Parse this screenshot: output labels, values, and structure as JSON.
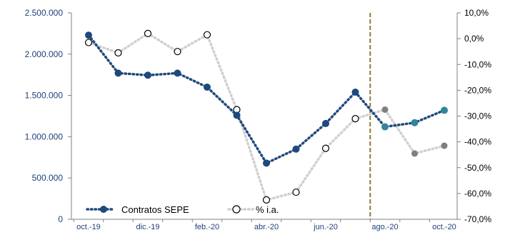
{
  "chart_data": {
    "type": "line",
    "x": [
      "oct.-19",
      "nov.-19",
      "dic.-19",
      "ene.-20",
      "feb.-20",
      "mar.-20",
      "abr.-20",
      "may.-20",
      "jun.-20",
      "jul.-20",
      "ago.-20",
      "sep.-20",
      "oct.-20"
    ],
    "x_tick_labels": [
      "oct.-19",
      "dic.-19",
      "feb.-20",
      "abr.-20",
      "jun.-20",
      "ago.-20",
      "oct.-20"
    ],
    "left_axis": {
      "ylim": [
        0,
        2500000
      ],
      "ticks": [
        "0",
        "500.000",
        "1.000.000",
        "1.500.000",
        "2.000.000",
        "2.500.000"
      ]
    },
    "right_axis": {
      "ylim": [
        -70,
        10
      ],
      "ticks": [
        "-70,0%",
        "-60,0%",
        "-50,0%",
        "-40,0%",
        "-30,0%",
        "-20,0%",
        "-10,0%",
        "0,0%",
        "10,0%"
      ]
    },
    "series": [
      {
        "name": "Contratos SEPE",
        "axis": "left",
        "values": [
          2230000,
          1770000,
          1745000,
          1770000,
          1600000,
          1260000,
          680000,
          850000,
          1160000,
          1540000,
          1120000,
          1170000,
          1320000
        ],
        "color": "#1f497d",
        "highlight_color": "#31859c",
        "highlight_from_index": 10
      },
      {
        "name": "% i.a.",
        "axis": "right",
        "values": [
          -1.5,
          -5.5,
          2.0,
          -5.0,
          1.5,
          -27.5,
          -62.5,
          -59.5,
          -42.5,
          -31.0,
          -27.5,
          -44.5,
          -41.5
        ],
        "color": "#d0d0d0",
        "highlight_color": "#7f7f7f",
        "highlight_from_index": 10
      }
    ],
    "reference_line": {
      "x": "jul.-20",
      "color": "#8c7a3c"
    },
    "legend_placement": "bottom-left",
    "grid": false
  }
}
